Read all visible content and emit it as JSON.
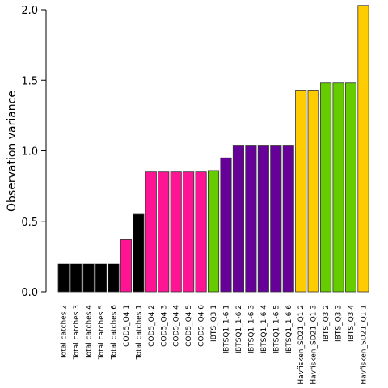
{
  "chart_data": {
    "type": "bar",
    "title": "",
    "xlabel": "",
    "ylabel": "Observation variance",
    "ylim": [
      0,
      2.0
    ],
    "yticks": [
      "0.0",
      "0.5",
      "1.0",
      "1.5",
      "2.0"
    ],
    "grid": false,
    "legend": "none",
    "categories": [
      "Total catches 2",
      "Total catches 3",
      "Total catches 4",
      "Total catches 5",
      "Total catches 6",
      "COD5_Q4 1",
      "Total catches 1",
      "COD5_Q4 2",
      "COD5_Q4 3",
      "COD5_Q4 4",
      "COD5_Q4 5",
      "COD5_Q4 6",
      "IBTS_Q3 1",
      "IBTSQ1_1-6 1",
      "IBTSQ1_1-6 2",
      "IBTSQ1_1-6 3",
      "IBTSQ1_1-6 4",
      "IBTSQ1_1-6 5",
      "IBTSQ1_1-6 6",
      "Havfisken_SD21_Q1 2",
      "Havfisken_SD21_Q1 3",
      "IBTS_Q3 2",
      "IBTS_Q3 3",
      "IBTS_Q3 4",
      "Havfisken_SD21_Q1 1"
    ],
    "values": [
      0.2,
      0.2,
      0.2,
      0.2,
      0.2,
      0.37,
      0.55,
      0.85,
      0.85,
      0.85,
      0.85,
      0.85,
      0.86,
      0.95,
      1.04,
      1.04,
      1.04,
      1.04,
      1.04,
      1.43,
      1.43,
      1.48,
      1.48,
      1.48,
      2.03
    ],
    "colors": [
      "#000000",
      "#000000",
      "#000000",
      "#000000",
      "#000000",
      "#ff1493",
      "#000000",
      "#ff1493",
      "#ff1493",
      "#ff1493",
      "#ff1493",
      "#ff1493",
      "#66cc00",
      "#660099",
      "#660099",
      "#660099",
      "#660099",
      "#660099",
      "#660099",
      "#ffcc00",
      "#ffcc00",
      "#66cc00",
      "#66cc00",
      "#66cc00",
      "#ffcc00"
    ]
  }
}
